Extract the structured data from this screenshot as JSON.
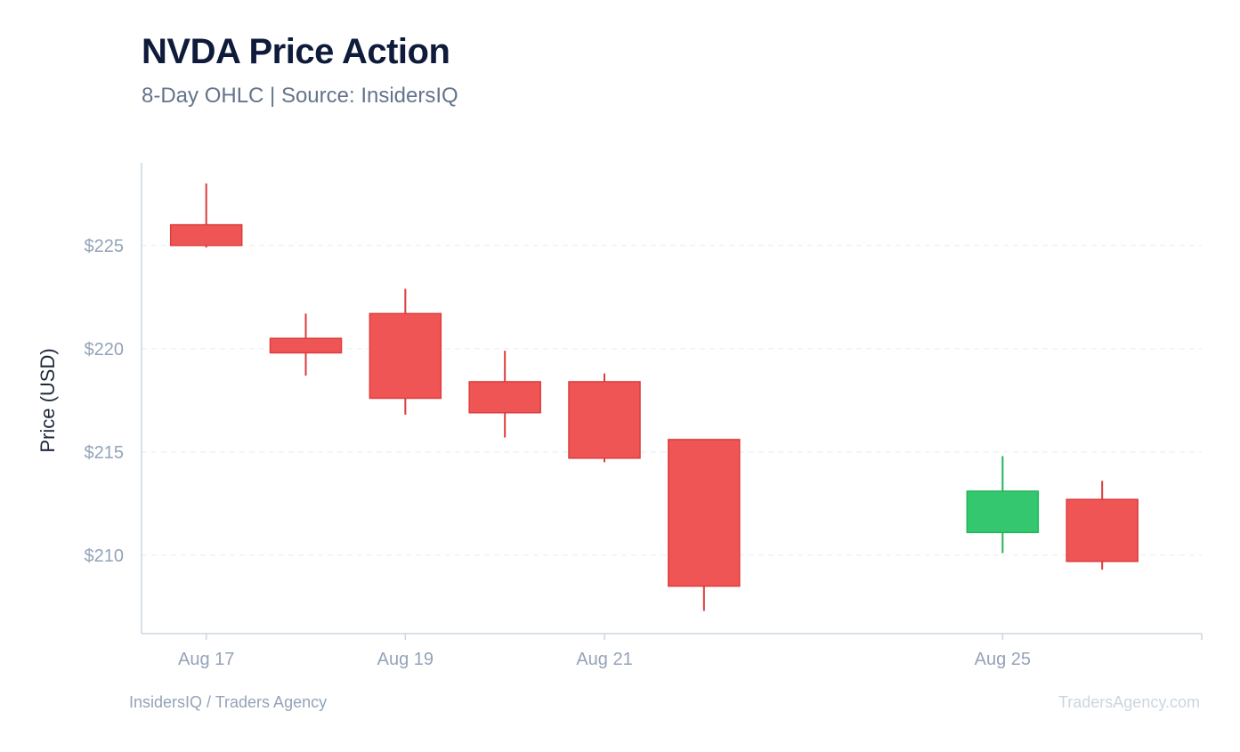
{
  "header": {
    "title": "NVDA Price Action",
    "subtitle": "8-Day OHLC | Source: InsidersIQ"
  },
  "footer": {
    "left": "InsidersIQ / Traders Agency",
    "right": "TradersAgency.com"
  },
  "colors": {
    "up": "#34c76f",
    "up_stroke": "#22b55c",
    "down": "#f05555",
    "down_stroke": "#dc3c3c",
    "grid": "#e8ecf1",
    "axis": "#cbd5e1"
  },
  "chart_data": {
    "type": "candlestick",
    "ylabel": "Price (USD)",
    "ylim": [
      206.2,
      229
    ],
    "yticks": [
      210,
      215,
      220,
      225
    ],
    "ytick_labels": [
      "$210",
      "$215",
      "$220",
      "$225"
    ],
    "xlim": [
      "Aug 16.35",
      "Aug 27"
    ],
    "xticks": [
      {
        "date": "Aug 17",
        "label": "Aug 17"
      },
      {
        "date": "Aug 19",
        "label": "Aug 19"
      },
      {
        "date": "Aug 21",
        "label": "Aug 21"
      },
      {
        "date": "Aug 25",
        "label": "Aug 25"
      },
      {
        "date": "Aug 27",
        "label": ""
      }
    ],
    "grid": true,
    "series": [
      {
        "date": "Aug 17",
        "open": 226.0,
        "high": 228.0,
        "low": 224.9,
        "close": 225.0
      },
      {
        "date": "Aug 18",
        "open": 220.5,
        "high": 221.7,
        "low": 218.7,
        "close": 219.8
      },
      {
        "date": "Aug 19",
        "open": 221.7,
        "high": 222.9,
        "low": 216.8,
        "close": 217.6
      },
      {
        "date": "Aug 20",
        "open": 218.4,
        "high": 219.9,
        "low": 215.7,
        "close": 216.9
      },
      {
        "date": "Aug 21",
        "open": 218.4,
        "high": 218.8,
        "low": 214.5,
        "close": 214.7
      },
      {
        "date": "Aug 22",
        "open": 215.6,
        "high": 215.6,
        "low": 207.3,
        "close": 208.5
      },
      {
        "date": "Aug 25",
        "open": 211.1,
        "high": 214.8,
        "low": 210.1,
        "close": 213.1
      },
      {
        "date": "Aug 26",
        "open": 212.7,
        "high": 213.6,
        "low": 209.3,
        "close": 209.7
      }
    ]
  }
}
